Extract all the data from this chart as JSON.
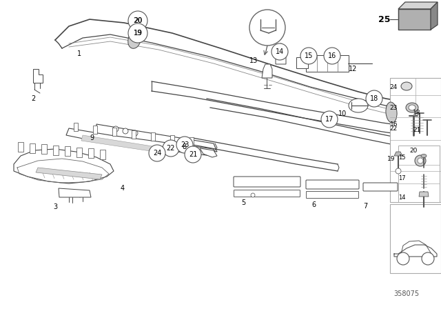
{
  "bg_color": "#ffffff",
  "diagram_number": "358075",
  "line_color": "#444444",
  "circle_edge": "#555555",
  "panel_bg": "#f8f8f8",
  "panel_border": "#999999"
}
